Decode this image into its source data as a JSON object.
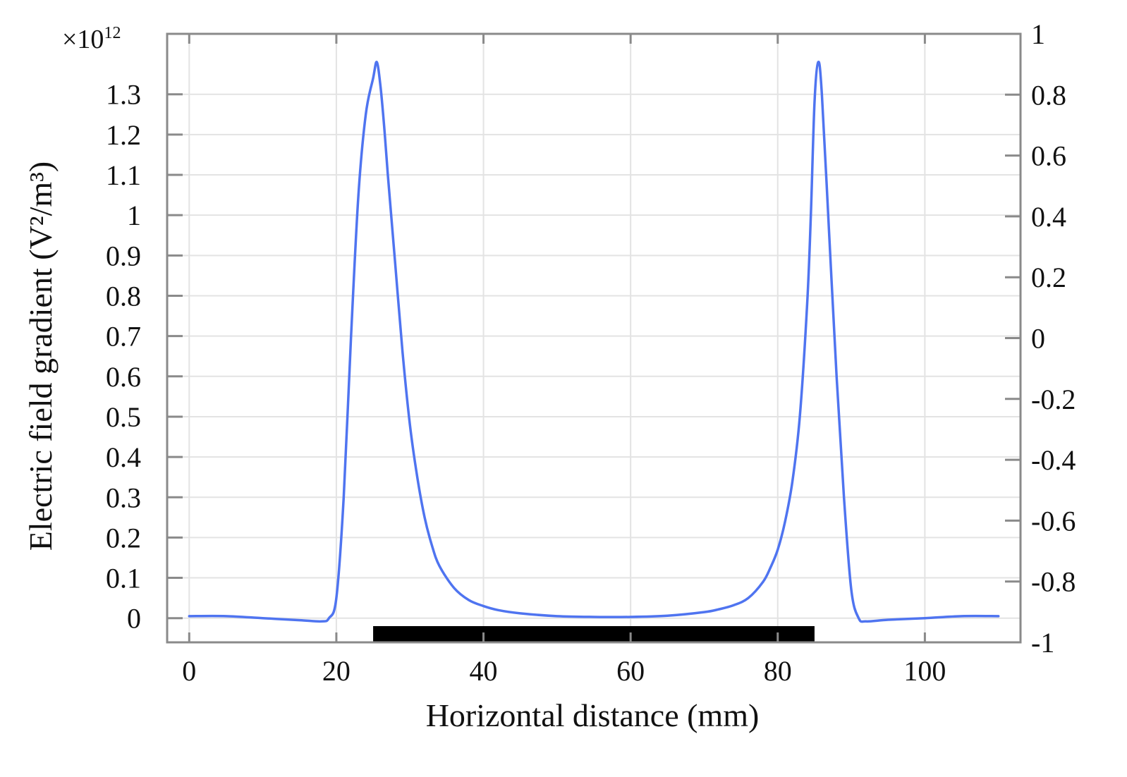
{
  "chart_data": {
    "type": "line",
    "xlabel": "Horizontal distance (mm)",
    "ylabel": "Electric field gradient (V²/m³)",
    "y_exponent_label": "×10",
    "y_exponent_power": "12",
    "xlim": [
      -3,
      113
    ],
    "ylim": [
      -0.06,
      1.45
    ],
    "y2lim": [
      -1,
      1
    ],
    "x_ticks": [
      0,
      20,
      40,
      60,
      80,
      100
    ],
    "y_ticks": [
      0,
      0.1,
      0.2,
      0.3,
      0.4,
      0.5,
      0.6,
      0.7,
      0.8,
      0.9,
      1,
      1.1,
      1.2,
      1.3
    ],
    "y2_ticks": [
      -1,
      -0.8,
      -0.6,
      -0.4,
      -0.2,
      0,
      0.2,
      0.4,
      0.6,
      0.8,
      1
    ],
    "grid": true,
    "legend": "none",
    "series": [
      {
        "color": "#4f74f0",
        "x": [
          0,
          5,
          10,
          15,
          18,
          19,
          20,
          21,
          22,
          23,
          24,
          25,
          25.5,
          26,
          26.5,
          27,
          28,
          29,
          30,
          31,
          32,
          33,
          34,
          36,
          38,
          40,
          42,
          45,
          50,
          55,
          60,
          65,
          70,
          72,
          74,
          76,
          78,
          79,
          80,
          81,
          82,
          83,
          84,
          84.5,
          85,
          85.5,
          86,
          87,
          88,
          89,
          90,
          91,
          92,
          95,
          100,
          105,
          110
        ],
        "y": [
          0.005,
          0.005,
          0.0,
          -0.005,
          -0.008,
          0.0,
          0.05,
          0.3,
          0.7,
          1.05,
          1.25,
          1.34,
          1.38,
          1.32,
          1.22,
          1.1,
          0.88,
          0.66,
          0.48,
          0.35,
          0.25,
          0.18,
          0.13,
          0.075,
          0.045,
          0.03,
          0.02,
          0.012,
          0.005,
          0.003,
          0.003,
          0.006,
          0.015,
          0.022,
          0.032,
          0.05,
          0.09,
          0.125,
          0.17,
          0.24,
          0.34,
          0.5,
          0.78,
          1.0,
          1.28,
          1.38,
          1.3,
          0.95,
          0.6,
          0.3,
          0.07,
          0.0,
          -0.008,
          -0.004,
          0.0,
          0.005,
          0.005
        ]
      }
    ],
    "annotation_bar": {
      "x_start": 25,
      "x_end": 85,
      "color": "#000000"
    }
  }
}
